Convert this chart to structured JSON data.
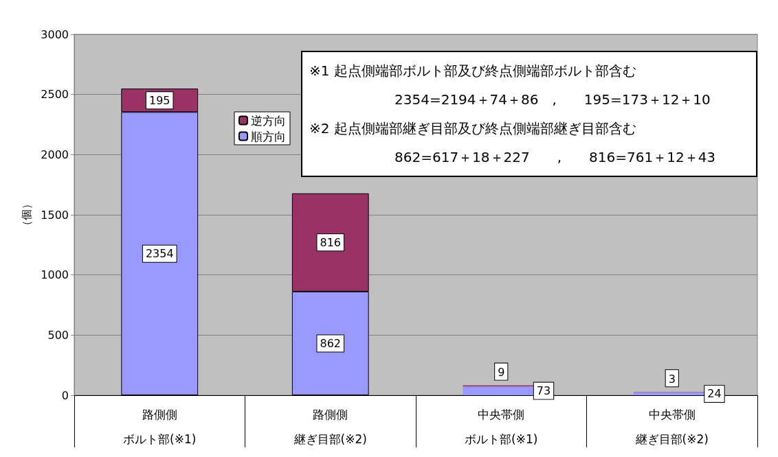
{
  "chart_data": {
    "type": "bar",
    "stacked": true,
    "ylabel": "（個）",
    "categories": [
      "路側側ボルト部(※1)",
      "路側側継ぎ目部(※2)",
      "中央帯側ボルト部(※1)",
      "中央帯側継ぎ目部(※2)"
    ],
    "series": [
      {
        "name": "順方向",
        "color": "#9999ff",
        "values": [
          2354,
          862,
          73,
          24
        ]
      },
      {
        "name": "逆方向",
        "color": "#993366",
        "values": [
          195,
          816,
          9,
          3
        ]
      }
    ],
    "ylim": [
      0,
      3000
    ],
    "yticks": [
      0,
      500,
      1000,
      1500,
      2000,
      2500,
      3000
    ],
    "grid": "y",
    "legend": "top left",
    "data_labels": true,
    "annotations": [
      "※1 起点側端部ボルト部及び終点側端部ボルト部含む",
      "2354=2194＋74＋86　,　　195=173＋12＋10",
      "※2 起点側端部継ぎ目部及び終点側端部継ぎ目部含む",
      "862=617＋18＋227　　,　　816=761＋12＋43"
    ]
  }
}
